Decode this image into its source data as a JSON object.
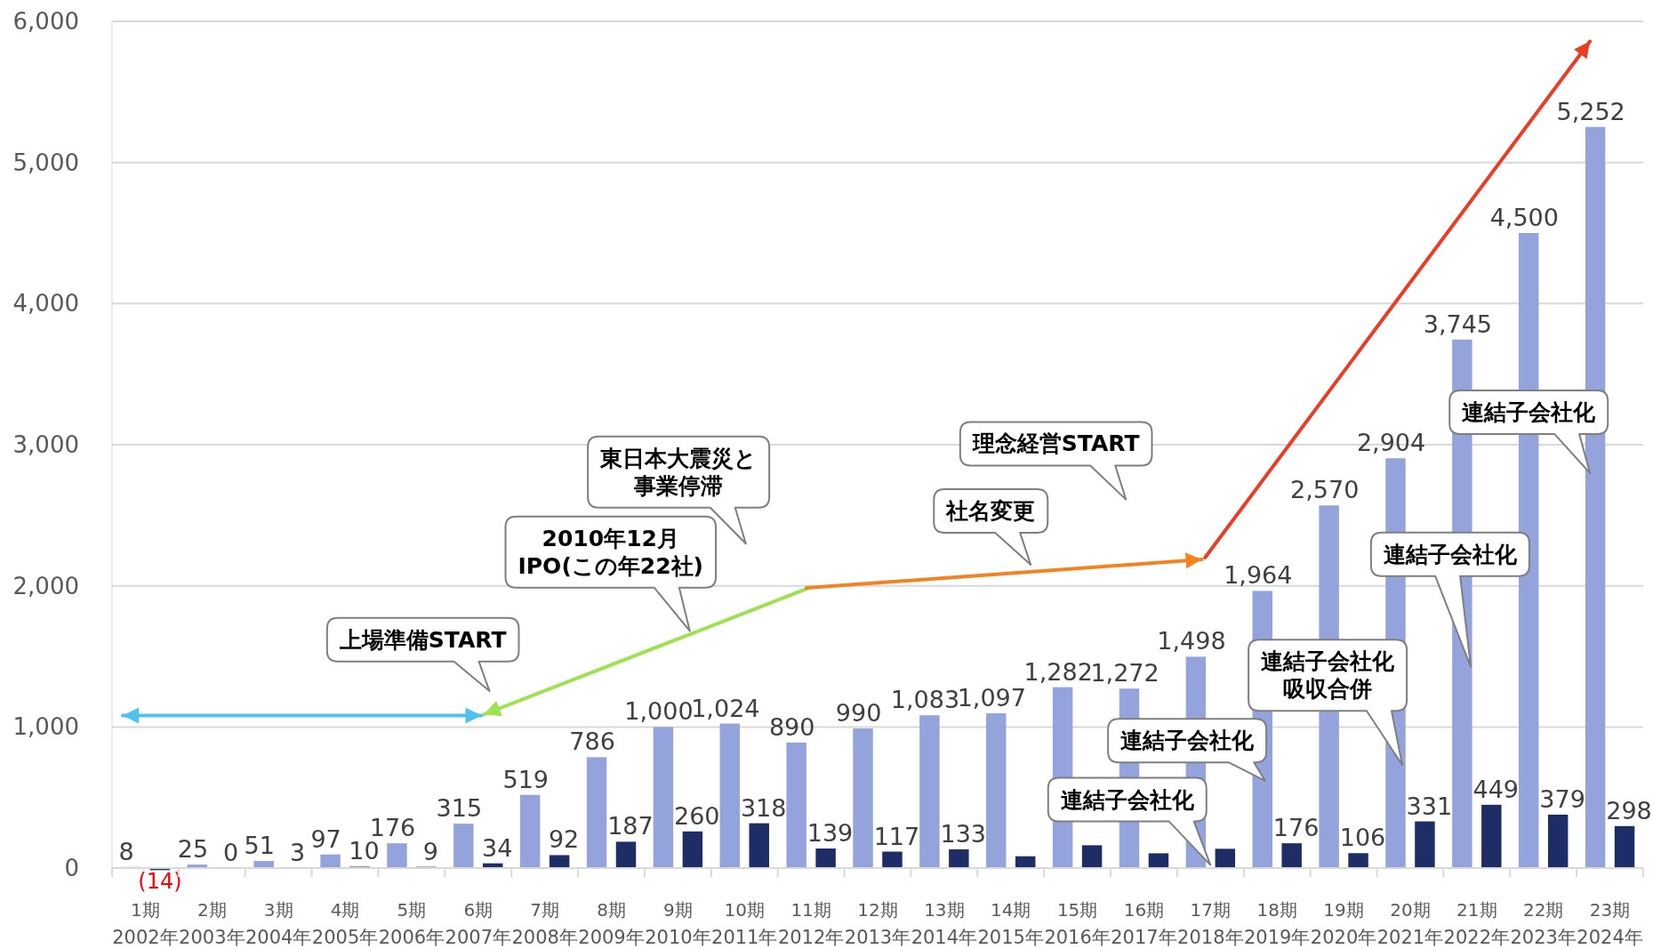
{
  "chart_data": {
    "type": "bar",
    "categories": [
      "1期\n2002年",
      "2期\n2003年",
      "3期\n2004年",
      "4期\n2005年",
      "5期\n2006年",
      "6期\n2007年",
      "7期\n2008年",
      "8期\n2009年",
      "9期\n2010年",
      "10期\n2011年",
      "11期\n2012年",
      "12期\n2013年",
      "13期\n2014年",
      "14期\n2015年",
      "15期\n2016年",
      "16期\n2017年",
      "17期\n2018年",
      "18期\n2019年",
      "19期\n2020年",
      "20期\n2021年",
      "21期\n2022年",
      "22期\n2023年",
      "23期\n2024年"
    ],
    "series": [
      {
        "color": "#94a3dc",
        "values": [
          8,
          25,
          51,
          97,
          176,
          315,
          519,
          786,
          1000,
          1024,
          890,
          990,
          1083,
          1097,
          1282,
          1272,
          1498,
          1964,
          2570,
          2904,
          3745,
          4500,
          5252
        ],
        "value_labels": [
          "8",
          "25",
          "51",
          "97",
          "176",
          "315",
          "519",
          "786",
          "1,000",
          "1,024",
          "890",
          "990",
          "1,083",
          "1,097",
          "1,282",
          "1,272",
          "1,498",
          "1,964",
          "2,570",
          "2,904",
          "3,745",
          "4,500",
          "5,252"
        ]
      },
      {
        "color": "#1f2d67",
        "values": [
          -14,
          0,
          3,
          10,
          9,
          34,
          92,
          187,
          260,
          318,
          139,
          117,
          133,
          84,
          162,
          105,
          137,
          176,
          106,
          331,
          449,
          379,
          298
        ],
        "value_labels": [
          "(14)",
          "0",
          "3",
          "10",
          "9",
          "34",
          "92",
          "187",
          "260",
          "318",
          "139",
          "117",
          "133",
          null,
          null,
          null,
          null,
          "176",
          "106",
          "331",
          "449",
          "379",
          "298"
        ]
      }
    ],
    "ylim": [
      -50,
      6000
    ],
    "yticks": [
      0,
      {
        "value": 1000,
        "label": "1,000"
      },
      {
        "value": 2000,
        "label": "2,000"
      },
      {
        "value": 3000,
        "label": "3,000"
      },
      {
        "value": 4000,
        "label": "4,000"
      },
      {
        "value": 5000,
        "label": "5,000"
      },
      {
        "value": 6000,
        "label": "6,000"
      }
    ],
    "grid": "y",
    "annotations": [
      "上場準備START",
      "2010年12月\nIPO(この年22社)",
      "東日本大震災と事業停滞",
      "社名変更",
      "理念経営START",
      "連結子会社化",
      "連結子会社化",
      "連結子会社化吸収合併",
      "連結子会社化",
      "連結子会社化"
    ]
  }
}
